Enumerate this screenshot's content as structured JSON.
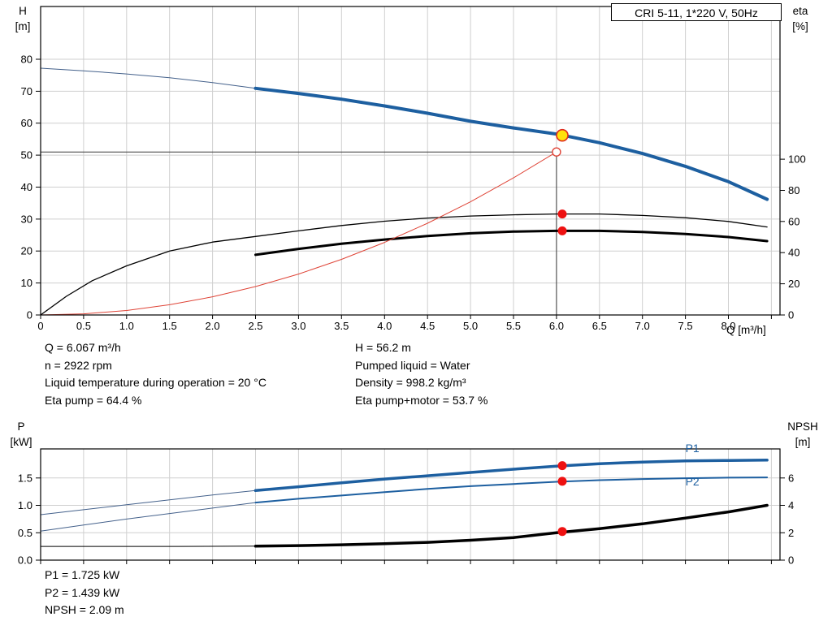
{
  "title_box": "CRI 5-11, 1*220 V, 50Hz",
  "axes": {
    "top_left_1": "H",
    "top_left_2": "[m]",
    "top_right_1": "eta",
    "top_right_2": "[%]",
    "x_label": "Q [m³/h]",
    "bottom_left_1": "P",
    "bottom_left_2": "[kW]",
    "bottom_right_1": "NPSH",
    "bottom_right_2": "[m]"
  },
  "info": {
    "left": [
      "Q = 6.067 m³/h",
      "n = 2922 rpm",
      "Liquid temperature during operation = 20 °C",
      "Eta pump = 64.4 %"
    ],
    "right": [
      "H = 56.2 m",
      "Pumped liquid = Water",
      "Density = 998.2 kg/m³",
      "Eta pump+motor = 53.7 %"
    ]
  },
  "results": [
    "P1 = 1.725 kW",
    "P2 = 1.439 kW",
    "NPSH = 2.09 m"
  ],
  "colors": {
    "blue_thick": "#1d5fa0",
    "blue_thin": "#44618b",
    "black": "#000000",
    "red_curve": "#df4437",
    "red_dot": "#ee1111",
    "yellow": "#ffe10c",
    "grid": "#cfcfcf"
  },
  "chart_data": [
    {
      "type": "line",
      "name": "qh-eta-chart",
      "title": "CRI 5-11, 1*220 V, 50Hz",
      "xlabel": "Q [m³/h]",
      "ylabel_left": "H [m]",
      "ylabel_right": "eta [%]",
      "xlim": [
        0,
        8.6
      ],
      "ylim_left": [
        0,
        96.5
      ],
      "ylim_right": [
        0,
        198
      ],
      "grid_x_step": 0.5,
      "grid_color": "#cfcfcf",
      "x_ticks": [
        [
          0,
          "0"
        ],
        [
          0.5,
          "0.5"
        ],
        [
          1,
          "1.0"
        ],
        [
          1.5,
          "1.5"
        ],
        [
          2,
          "2.0"
        ],
        [
          2.5,
          "2.5"
        ],
        [
          3,
          "3.0"
        ],
        [
          3.5,
          "3.5"
        ],
        [
          4,
          "4.0"
        ],
        [
          4.5,
          "4.5"
        ],
        [
          5,
          "5.0"
        ],
        [
          5.5,
          "5.5"
        ],
        [
          6,
          "6.0"
        ],
        [
          6.5,
          "6.5"
        ],
        [
          7,
          "7.0"
        ],
        [
          7.5,
          "7.5"
        ],
        [
          8,
          "8.0"
        ]
      ],
      "y_ticks_left": [
        [
          0,
          "0"
        ],
        [
          10,
          "10"
        ],
        [
          20,
          "20"
        ],
        [
          30,
          "30"
        ],
        [
          40,
          "40"
        ],
        [
          50,
          "50"
        ],
        [
          60,
          "60"
        ],
        [
          70,
          "70"
        ],
        [
          80,
          "80"
        ]
      ],
      "y_ticks_right": [
        [
          0,
          "0"
        ],
        [
          20,
          "20"
        ],
        [
          40,
          "40"
        ],
        [
          60,
          "60"
        ],
        [
          80,
          "80"
        ],
        [
          100,
          "100"
        ]
      ],
      "ref_lines": [
        {
          "axis": "left",
          "x1": 0,
          "y1": 51,
          "x2": 6,
          "y2": 51
        },
        {
          "axis": "left",
          "x1": 6,
          "y1": 0,
          "x2": 6,
          "y2": 51
        }
      ],
      "series": [
        {
          "name": "pump-curve-extension",
          "axis": "left",
          "color": "#44618b",
          "width": 1,
          "points": [
            [
              0,
              77.2
            ],
            [
              0.5,
              76.4
            ],
            [
              1,
              75.4
            ],
            [
              1.5,
              74.2
            ],
            [
              2,
              72.7
            ],
            [
              2.5,
              70.9
            ]
          ]
        },
        {
          "name": "pump-curve",
          "axis": "left",
          "color": "#1d5fa0",
          "width": 4,
          "points": [
            [
              2.5,
              70.9
            ],
            [
              3,
              69.3
            ],
            [
              3.5,
              67.5
            ],
            [
              4,
              65.4
            ],
            [
              4.5,
              63.1
            ],
            [
              5,
              60.6
            ],
            [
              5.5,
              58.5
            ],
            [
              6,
              56.6
            ],
            [
              6.5,
              53.9
            ],
            [
              7,
              50.5
            ],
            [
              7.5,
              46.5
            ],
            [
              8,
              41.7
            ],
            [
              8.45,
              36.2
            ]
          ]
        },
        {
          "name": "eta-pump-curve",
          "axis": "right",
          "color": "#000000",
          "width": 1.3,
          "points": [
            [
              0,
              0
            ],
            [
              0.3,
              12
            ],
            [
              0.6,
              22
            ],
            [
              1,
              31.5
            ],
            [
              1.5,
              41
            ],
            [
              2,
              46.8
            ],
            [
              2.5,
              50.4
            ],
            [
              3,
              54
            ],
            [
              3.5,
              57.4
            ],
            [
              4,
              60.2
            ],
            [
              4.5,
              62.2
            ],
            [
              5,
              63.5
            ],
            [
              5.5,
              64.3
            ],
            [
              6,
              64.8
            ],
            [
              6.5,
              64.8
            ],
            [
              7,
              63.9
            ],
            [
              7.5,
              62.4
            ],
            [
              8,
              60
            ],
            [
              8.45,
              56.5
            ]
          ]
        },
        {
          "name": "eta-pump-motor-curve",
          "axis": "right",
          "color": "#000000",
          "width": 3,
          "points": [
            [
              2.5,
              38.6
            ],
            [
              3,
              42.4
            ],
            [
              3.5,
              45.7
            ],
            [
              4,
              48.4
            ],
            [
              4.5,
              50.7
            ],
            [
              5,
              52.4
            ],
            [
              5.5,
              53.5
            ],
            [
              6,
              54
            ],
            [
              6.5,
              54
            ],
            [
              7,
              53.3
            ],
            [
              7.5,
              52
            ],
            [
              8,
              50
            ],
            [
              8.45,
              47.4
            ]
          ]
        },
        {
          "name": "system-curve",
          "axis": "left",
          "color": "#df4437",
          "width": 1,
          "points": [
            [
              0,
              0
            ],
            [
              0.5,
              0.35
            ],
            [
              1,
              1.4
            ],
            [
              1.5,
              3.2
            ],
            [
              2,
              5.7
            ],
            [
              2.5,
              8.9
            ],
            [
              3,
              12.8
            ],
            [
              3.5,
              17.4
            ],
            [
              4,
              22.7
            ],
            [
              4.5,
              28.7
            ],
            [
              5,
              35.4
            ],
            [
              5.5,
              42.9
            ],
            [
              6,
              51
            ]
          ]
        }
      ],
      "markers": [
        {
          "type": "open-circle",
          "axis": "left",
          "x": 6,
          "y": 51,
          "r": 5,
          "stroke": "#df4437",
          "fill": "#ffffff"
        },
        {
          "type": "dot",
          "axis": "right",
          "x": 6.067,
          "y": 64.8,
          "r": 5.5,
          "fill": "#ee1111"
        },
        {
          "type": "dot",
          "axis": "right",
          "x": 6.067,
          "y": 54,
          "r": 5.5,
          "fill": "#ee1111"
        },
        {
          "type": "duty",
          "axis": "left",
          "x": 6.067,
          "y": 56.2,
          "r": 7,
          "fill": "#ffe10c",
          "stroke": "#df2b1e"
        }
      ],
      "labels": []
    },
    {
      "type": "line",
      "name": "power-npsh-chart",
      "title": "",
      "xlabel": "",
      "ylabel_left": "P [kW]",
      "ylabel_right": "NPSH [m]",
      "xlim": [
        0,
        8.6
      ],
      "ylim_left": [
        0,
        2.03
      ],
      "ylim_right": [
        0,
        8.12
      ],
      "grid_x_step": 0.5,
      "grid_color": "#cfcfcf",
      "x_ticks": [],
      "y_ticks_left": [
        [
          0,
          "0.0"
        ],
        [
          0.5,
          "0.5"
        ],
        [
          1,
          "1.0"
        ],
        [
          1.5,
          "1.5"
        ]
      ],
      "y_ticks_right": [
        [
          0,
          "0"
        ],
        [
          2,
          "2"
        ],
        [
          4,
          "4"
        ],
        [
          6,
          "6"
        ]
      ],
      "ref_lines": [],
      "series": [
        {
          "name": "p1-curve-extension",
          "axis": "left",
          "color": "#44618b",
          "width": 1,
          "points": [
            [
              0,
              0.83
            ],
            [
              0.5,
              0.92
            ],
            [
              1,
              1.01
            ],
            [
              1.5,
              1.1
            ],
            [
              2,
              1.19
            ],
            [
              2.5,
              1.27
            ]
          ]
        },
        {
          "name": "p1-curve",
          "axis": "left",
          "color": "#1d5fa0",
          "width": 3.5,
          "points": [
            [
              2.5,
              1.27
            ],
            [
              3,
              1.34
            ],
            [
              3.5,
              1.41
            ],
            [
              4,
              1.48
            ],
            [
              4.5,
              1.54
            ],
            [
              5,
              1.6
            ],
            [
              5.5,
              1.66
            ],
            [
              6,
              1.715
            ],
            [
              6.5,
              1.76
            ],
            [
              7,
              1.79
            ],
            [
              7.5,
              1.81
            ],
            [
              8,
              1.82
            ],
            [
              8.45,
              1.825
            ]
          ]
        },
        {
          "name": "p2-curve-extension",
          "axis": "left",
          "color": "#44618b",
          "width": 1,
          "points": [
            [
              0,
              0.53
            ],
            [
              0.5,
              0.64
            ],
            [
              1,
              0.75
            ],
            [
              1.5,
              0.85
            ],
            [
              2,
              0.95
            ],
            [
              2.5,
              1.05
            ]
          ]
        },
        {
          "name": "p2-curve",
          "axis": "left",
          "color": "#1d5fa0",
          "width": 2,
          "points": [
            [
              2.5,
              1.05
            ],
            [
              3,
              1.12
            ],
            [
              3.5,
              1.18
            ],
            [
              4,
              1.24
            ],
            [
              4.5,
              1.3
            ],
            [
              5,
              1.35
            ],
            [
              5.5,
              1.39
            ],
            [
              6,
              1.43
            ],
            [
              6.5,
              1.46
            ],
            [
              7,
              1.48
            ],
            [
              7.5,
              1.495
            ],
            [
              8,
              1.505
            ],
            [
              8.45,
              1.51
            ]
          ]
        },
        {
          "name": "npsh-curve-extension",
          "axis": "right",
          "color": "#000000",
          "width": 1,
          "points": [
            [
              0,
              1.0
            ],
            [
              0.8,
              1.0
            ],
            [
              1.6,
              1.0
            ],
            [
              2.5,
              1.02
            ]
          ]
        },
        {
          "name": "npsh-curve",
          "axis": "right",
          "color": "#000000",
          "width": 3.5,
          "points": [
            [
              2.5,
              1.02
            ],
            [
              3,
              1.06
            ],
            [
              3.5,
              1.12
            ],
            [
              4,
              1.2
            ],
            [
              4.5,
              1.3
            ],
            [
              5,
              1.45
            ],
            [
              5.5,
              1.65
            ],
            [
              6,
              2.0
            ],
            [
              6.5,
              2.3
            ],
            [
              7,
              2.65
            ],
            [
              7.5,
              3.07
            ],
            [
              8,
              3.52
            ],
            [
              8.45,
              4.0
            ]
          ]
        }
      ],
      "markers": [
        {
          "type": "dot",
          "axis": "left",
          "x": 6.067,
          "y": 1.725,
          "r": 5.5,
          "fill": "#ee1111"
        },
        {
          "type": "dot",
          "axis": "left",
          "x": 6.067,
          "y": 1.439,
          "r": 5.5,
          "fill": "#ee1111"
        },
        {
          "type": "dot",
          "axis": "right",
          "x": 6.067,
          "y": 2.09,
          "r": 5.5,
          "fill": "#ee1111"
        }
      ],
      "labels": [
        {
          "text": "P1",
          "x": 7.5,
          "y": 1.97,
          "axis": "left",
          "color": "#1d5fa0"
        },
        {
          "text": "P2",
          "x": 7.5,
          "y": 1.36,
          "axis": "left",
          "color": "#1d5fa0"
        }
      ]
    }
  ]
}
